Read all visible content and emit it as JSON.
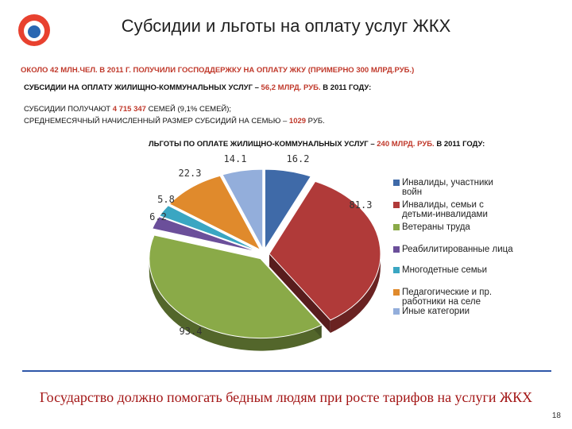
{
  "header": {
    "title": "Субсидии и льготы на оплату услуг ЖКХ"
  },
  "text": {
    "line1": "ОКОЛО 42 МЛН.ЧЕЛ. В 2011 Г. ПОЛУЧИЛИ ГОСПОДДЕРЖКУ НА ОПЛАТУ ЖКУ (ПРИМЕРНО 300 МЛРД.РУБ.)",
    "line2_pre": "СУБСИДИИ НА ОПЛАТУ ЖИЛИЩНО-КОММУНАЛЬНЫХ УСЛУГ – ",
    "line2_hl": "56,2 МЛРД. РУБ.",
    "line2_post": " В 2011 ГОДУ:",
    "line3_pre": "СУБСИДИИ ПОЛУЧАЮТ ",
    "line3_hl": "4 715 347",
    "line3_post": " СЕМЕЙ (9,1% СЕМЕЙ);",
    "line4_pre": "СРЕДНЕМЕСЯЧНЫЙ НАЧИСЛЕННЫЙ РАЗМЕР СУБСИДИЙ НА СЕМЬЮ – ",
    "line4_hl": "1029",
    "line4_post": " РУБ.",
    "line5_pre": "ЛЬГОТЫ ПО ОПЛАТЕ ЖИЛИЩНО-КОММУНАЛЬНЫХ УСЛУГ – ",
    "line5_hl": "240 МЛРД. РУБ.",
    "line5_post": " В 2011 ГОДУ:"
  },
  "footer": {
    "text": "Государство должно помогать бедным людям при росте тарифов на услуги ЖКХ"
  },
  "page_number": "18",
  "chart_data": {
    "type": "pie",
    "series": [
      {
        "name": "Инвалиды, участники войн",
        "value": 16.2,
        "label": "16.2",
        "color": "#3f6aa8"
      },
      {
        "name": "Инвалиды, семьи с детьми-инвалидами",
        "value": 81.3,
        "label": "81.3",
        "color": "#b03a39"
      },
      {
        "name": "Ветераны труда",
        "value": 93.4,
        "label": "93.4",
        "color": "#8aaa48"
      },
      {
        "name": "Реабилитированные лица",
        "value": 6.2,
        "label": "6.2",
        "color": "#6b4f9a"
      },
      {
        "name": "Многодетные семьи",
        "value": 5.8,
        "label": "5.8",
        "color": "#3aa6c2"
      },
      {
        "name": "Педагогические и пр. работники на селе",
        "value": 22.3,
        "label": "22.3",
        "color": "#e08a2c"
      },
      {
        "name": "Иные категории",
        "value": 14.1,
        "label": "14.1",
        "color": "#93aedb"
      }
    ],
    "legend_position": "right"
  }
}
